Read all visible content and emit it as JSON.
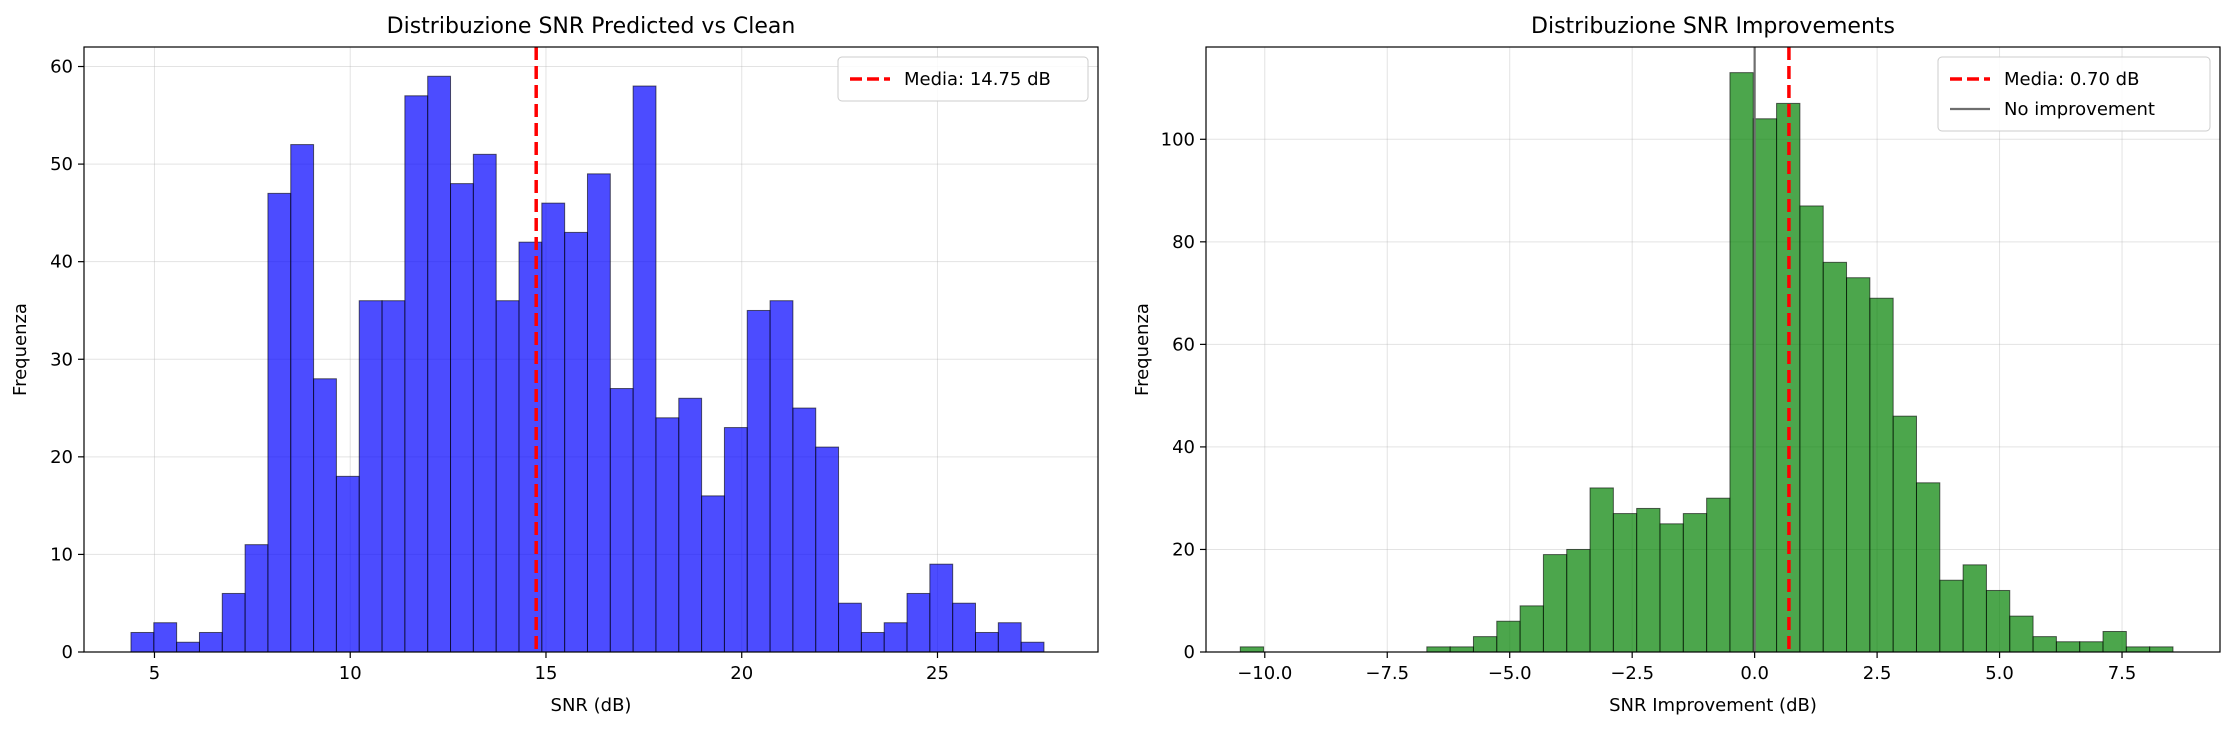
{
  "chart_data": [
    {
      "type": "histogram",
      "title": "Distribuzione SNR Predicted vs Clean",
      "xlabel": "SNR (dB)",
      "ylabel": "Frequenza",
      "xlim": [
        3.2,
        29.1
      ],
      "ylim": [
        0,
        62
      ],
      "xticks": [
        5,
        10,
        15,
        20,
        25
      ],
      "yticks": [
        0,
        10,
        20,
        30,
        40,
        50,
        60
      ],
      "bin_start": 4.4,
      "bin_width": 0.583,
      "counts": [
        2,
        3,
        1,
        2,
        6,
        11,
        47,
        52,
        28,
        18,
        36,
        36,
        57,
        59,
        48,
        51,
        36,
        42,
        46,
        43,
        49,
        27,
        58,
        24,
        26,
        16,
        23,
        35,
        36,
        25,
        21,
        5,
        2,
        3,
        6,
        9,
        5,
        2,
        3,
        1
      ],
      "bar_color": "#0000ff",
      "vlines": [
        {
          "x": 14.75,
          "color": "#ff0000",
          "style": "dashed",
          "label": "Media: 14.75 dB"
        }
      ],
      "legend": "top-right",
      "grid": true
    },
    {
      "type": "histogram",
      "title": "Distribuzione SNR Improvements",
      "xlabel": "SNR Improvement (dB)",
      "ylabel": "Frequenza",
      "xlim": [
        -11.2,
        9.5
      ],
      "ylim": [
        0,
        118
      ],
      "xticks": [
        -10.0,
        -7.5,
        -5.0,
        -2.5,
        0.0,
        2.5,
        5.0,
        7.5
      ],
      "xtick_labels": [
        "−10.0",
        "−7.5",
        "−5.0",
        "−2.5",
        "0.0",
        "2.5",
        "5.0",
        "7.5"
      ],
      "yticks": [
        0,
        20,
        40,
        60,
        80,
        100
      ],
      "bin_start": -10.5,
      "bin_width": 0.476,
      "counts": [
        1,
        0,
        0,
        0,
        0,
        0,
        0,
        0,
        1,
        1,
        3,
        6,
        9,
        19,
        20,
        32,
        27,
        28,
        25,
        27,
        30,
        113,
        104,
        107,
        87,
        76,
        73,
        69,
        46,
        33,
        14,
        17,
        12,
        7,
        3,
        2,
        2,
        4,
        1,
        1
      ],
      "bar_color": "#008000",
      "vlines": [
        {
          "x": 0.7,
          "color": "#ff0000",
          "style": "dashed",
          "label": "Media: 0.70 dB"
        },
        {
          "x": 0.0,
          "color": "#6e6e6e",
          "style": "solid",
          "label": "No improvement"
        }
      ],
      "legend": "top-right",
      "grid": true
    }
  ]
}
